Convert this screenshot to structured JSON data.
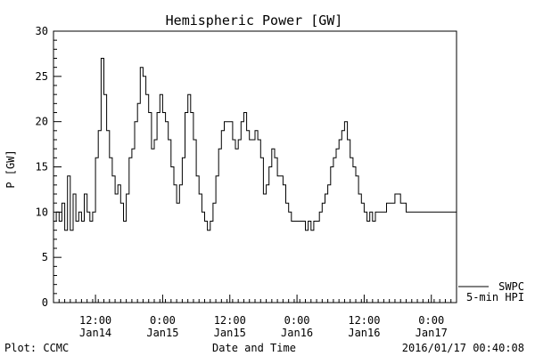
{
  "chart_data": {
    "type": "line",
    "title": "Hemispheric Power [GW]",
    "ylabel": "P [GW]",
    "xlabel": "Date and Time",
    "ylim": [
      0,
      30
    ],
    "yticks": [
      0,
      5,
      10,
      15,
      20,
      25,
      30
    ],
    "xrange_hours": [
      0,
      72
    ],
    "xticks": [
      {
        "hour": 7.5,
        "time": "12:00",
        "date": "Jan14"
      },
      {
        "hour": 19.5,
        "time": "0:00",
        "date": "Jan15"
      },
      {
        "hour": 31.5,
        "time": "12:00",
        "date": "Jan15"
      },
      {
        "hour": 43.5,
        "time": "0:00",
        "date": "Jan16"
      },
      {
        "hour": 55.5,
        "time": "12:00",
        "date": "Jan16"
      },
      {
        "hour": 67.5,
        "time": "0:00",
        "date": "Jan17"
      }
    ],
    "grid": false,
    "legend": [
      "SWPC",
      "5-min HPI"
    ],
    "series": [
      {
        "name": "5-min HPI",
        "x": [
          0.0,
          0.5,
          1.0,
          1.5,
          2.0,
          2.5,
          3.0,
          3.5,
          4.0,
          4.5,
          5.0,
          5.5,
          6.0,
          6.5,
          7.0,
          7.5,
          8.0,
          8.5,
          9.0,
          9.5,
          10.0,
          10.5,
          11.0,
          11.5,
          12.0,
          12.5,
          13.0,
          13.5,
          14.0,
          14.5,
          15.0,
          15.5,
          16.0,
          16.5,
          17.0,
          17.5,
          18.0,
          18.5,
          19.0,
          19.5,
          20.0,
          20.5,
          21.0,
          21.5,
          22.0,
          22.5,
          23.0,
          23.5,
          24.0,
          24.5,
          25.0,
          25.5,
          26.0,
          26.5,
          27.0,
          27.5,
          28.0,
          28.5,
          29.0,
          29.5,
          30.0,
          30.5,
          31.0,
          31.5,
          32.0,
          32.5,
          33.0,
          33.5,
          34.0,
          34.5,
          35.0,
          35.5,
          36.0,
          36.5,
          37.0,
          37.5,
          38.0,
          38.5,
          39.0,
          39.5,
          40.0,
          40.5,
          41.0,
          41.5,
          42.0,
          42.5,
          43.0,
          43.5,
          44.0,
          44.5,
          45.0,
          45.5,
          46.0,
          46.5,
          47.0,
          47.5,
          48.0,
          48.5,
          49.0,
          49.5,
          50.0,
          50.5,
          51.0,
          51.5,
          52.0,
          52.5,
          53.0,
          53.5,
          54.0,
          54.5,
          55.0,
          55.5,
          56.0,
          56.5,
          57.0,
          57.5,
          58.0,
          58.5,
          59.0,
          59.5,
          60.0,
          60.5,
          61.0,
          61.5,
          62.0,
          62.5,
          63.0,
          63.5,
          64.0,
          64.5,
          65.0,
          65.5,
          66.0,
          66.5,
          67.0,
          67.5,
          68.0,
          68.5,
          69.0,
          69.5,
          70.0,
          70.5,
          71.0,
          71.5,
          72.0
        ],
        "values": [
          9,
          10,
          9,
          11,
          8,
          14,
          8,
          12,
          9,
          10,
          9,
          12,
          10,
          9,
          10,
          16,
          19,
          27,
          23,
          19,
          16,
          14,
          12,
          13,
          11,
          9,
          12,
          16,
          17,
          20,
          22,
          26,
          25,
          23,
          21,
          17,
          18,
          21,
          23,
          21,
          20,
          18,
          15,
          13,
          11,
          13,
          16,
          21,
          23,
          21,
          18,
          14,
          12,
          10,
          9,
          8,
          9,
          11,
          14,
          17,
          19,
          20,
          20,
          20,
          18,
          17,
          18,
          20,
          21,
          19,
          18,
          18,
          19,
          18,
          16,
          12,
          13,
          15,
          17,
          16,
          14,
          14,
          13,
          11,
          10,
          9,
          9,
          9,
          9,
          9,
          8,
          9,
          8,
          9,
          9,
          10,
          11,
          12,
          13,
          15,
          16,
          17,
          18,
          19,
          20,
          18,
          16,
          15,
          14,
          12,
          11,
          10,
          9,
          10,
          9,
          10,
          10,
          10,
          10,
          11,
          11,
          11,
          12,
          12,
          11,
          11,
          10,
          10,
          10,
          10,
          10,
          10,
          10,
          10,
          10,
          10,
          10,
          10,
          10,
          10,
          10,
          10,
          10,
          10,
          10
        ]
      }
    ]
  },
  "footer": {
    "left": "Plot: CCMC",
    "right": "2016/01/17 00:40:08"
  }
}
